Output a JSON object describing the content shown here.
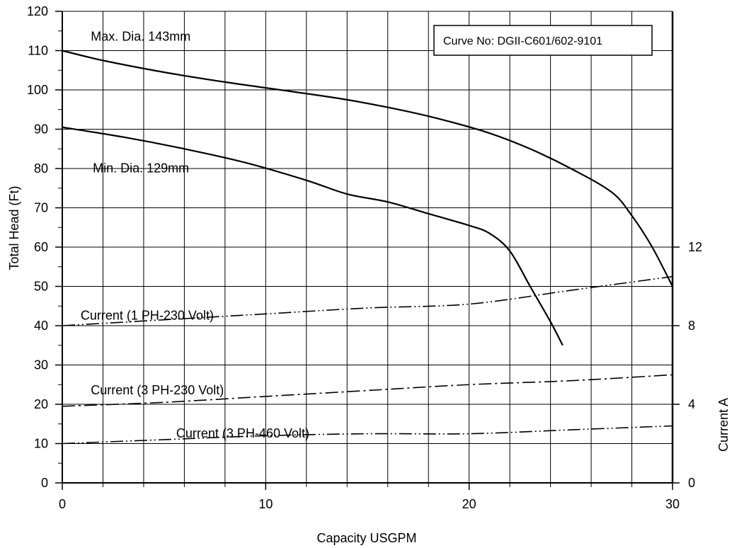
{
  "chart_data": {
    "type": "line",
    "title": "",
    "xlabel": "Capacity USGPM",
    "ylabel": "Total Head (Ft)",
    "y2label": "Current A",
    "xlim": [
      0,
      30
    ],
    "ylim": [
      0,
      120
    ],
    "y2lim": [
      0,
      24
    ],
    "grid": true,
    "x_ticks": [
      0,
      10,
      20,
      30
    ],
    "x_tick_labels": [
      "0",
      "10",
      "20",
      "30"
    ],
    "y_ticks": [
      0,
      10,
      20,
      30,
      40,
      50,
      60,
      70,
      80,
      90,
      100,
      110,
      120
    ],
    "y_tick_labels": [
      "0",
      "10",
      "20",
      "30",
      "40",
      "50",
      "60",
      "70",
      "80",
      "90",
      "100",
      "110",
      "120"
    ],
    "y2_ticks": [
      0,
      4,
      8,
      12
    ],
    "y2_tick_labels": [
      "0",
      "4",
      "8",
      "12"
    ],
    "annotation": "Curve No: DGII-C601/602-9101",
    "series": [
      {
        "name": "Max. Dia. 143mm",
        "axis": "left",
        "style": "solid",
        "x": [
          0,
          2,
          5,
          8,
          11,
          14,
          17,
          19,
          21,
          23,
          25,
          27,
          28,
          29,
          30
        ],
        "y": [
          110,
          107.5,
          104.5,
          102,
          99.8,
          97.5,
          94.5,
          92,
          89,
          85,
          80,
          74,
          68,
          60,
          50
        ]
      },
      {
        "name": "Min. Dia. 129mm",
        "axis": "left",
        "style": "solid",
        "x": [
          0,
          3,
          6,
          9,
          12,
          14,
          16,
          18,
          20,
          21,
          22,
          23,
          24,
          24.6
        ],
        "y": [
          90.5,
          88,
          85,
          81.5,
          77,
          73.5,
          71.5,
          68.5,
          65.5,
          63.5,
          59,
          50,
          41,
          35
        ]
      },
      {
        "name": "Current (1 PH-230 Volt)",
        "axis": "right",
        "style": "dash-dot-dot",
        "x": [
          0,
          5,
          10,
          15,
          20,
          25,
          30
        ],
        "y": [
          8,
          8.3,
          8.6,
          8.9,
          9.1,
          9.8,
          10.5
        ]
      },
      {
        "name": "Current (3 PH-230 Volt)",
        "axis": "right",
        "style": "dash-dot",
        "x": [
          0,
          5,
          10,
          15,
          20,
          25,
          30
        ],
        "y": [
          3.9,
          4.1,
          4.4,
          4.7,
          5.0,
          5.2,
          5.5
        ]
      },
      {
        "name": "Current (3 PH-460 Volt)",
        "axis": "right",
        "style": "dash-dot-dot",
        "x": [
          0,
          5,
          10,
          15,
          20,
          25,
          30
        ],
        "y": [
          2.0,
          2.2,
          2.4,
          2.5,
          2.5,
          2.7,
          2.9
        ]
      }
    ],
    "labels": [
      {
        "text": "Max. Dia. 143mm",
        "x": 1.4,
        "y": 112.5
      },
      {
        "text": "Min. Dia. 129mm",
        "x": 1.5,
        "y": 79
      },
      {
        "text": "Current (1 PH-230 Volt)",
        "x": 0.9,
        "y": 41.5
      },
      {
        "text": "Current (3 PH-230 Volt)",
        "x": 1.4,
        "y": 22.5
      },
      {
        "text": "Current (3 PH-460 Volt)",
        "x": 5.6,
        "y": 11.5
      }
    ]
  }
}
